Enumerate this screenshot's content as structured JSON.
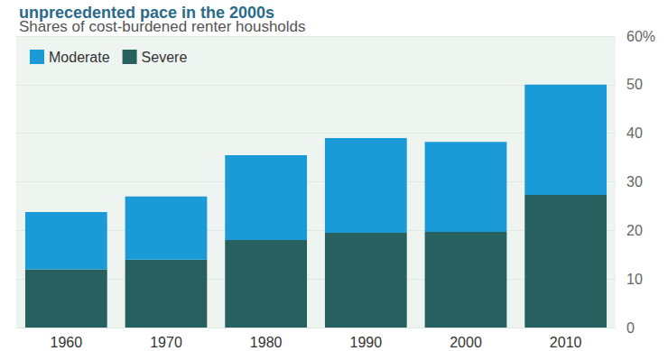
{
  "chart_data": {
    "type": "bar",
    "title": "unprecedented pace in the 2000s",
    "subtitle": "Shares of cost-burdened renter housholds",
    "categories": [
      "1960",
      "1970",
      "1980",
      "1990",
      "2000",
      "2010"
    ],
    "series": [
      {
        "name": "Moderate",
        "color": "#1a9bd7",
        "values": [
          11.8,
          13,
          17.5,
          19.5,
          18.5,
          22.7
        ]
      },
      {
        "name": "Severe",
        "color": "#27605f",
        "values": [
          12,
          14,
          18,
          19.5,
          19.7,
          27.3
        ]
      }
    ],
    "stacked": true,
    "ylim": [
      0,
      60
    ],
    "yticks": [
      0,
      10,
      20,
      30,
      40,
      50,
      {
        "value": 60,
        "label": "60%"
      }
    ],
    "grid": true,
    "legend": "upper left"
  }
}
